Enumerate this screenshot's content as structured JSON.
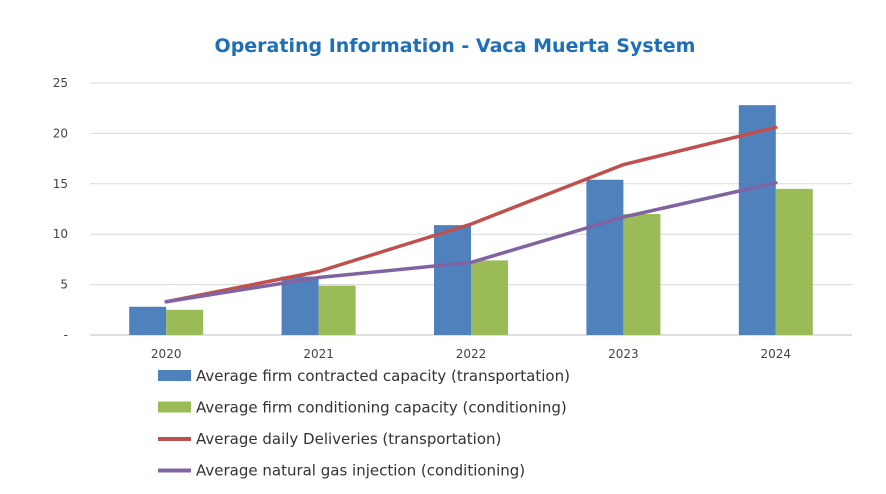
{
  "chart_data": {
    "type": "bar",
    "title": "Operating Information - Vaca Muerta System",
    "xlabel": "",
    "ylabel": "",
    "categories": [
      "2020",
      "2021",
      "2022",
      "2023",
      "2024"
    ],
    "ylim": [
      0,
      25
    ],
    "yticks": [
      0,
      5,
      10,
      15,
      20,
      25
    ],
    "ytick_labels": [
      "-",
      "5",
      "10",
      "15",
      "20",
      "25"
    ],
    "grid": true,
    "legend_position": "bottom",
    "series": [
      {
        "name": "Average firm contracted capacity (transportation)",
        "kind": "bar",
        "color": "#4F81BD",
        "values": [
          2.8,
          5.8,
          10.9,
          15.4,
          22.8
        ]
      },
      {
        "name": "Average firm conditioning capacity (conditioning)",
        "kind": "bar",
        "color": "#9BBB59",
        "values": [
          2.5,
          4.9,
          7.4,
          12.0,
          14.5
        ]
      },
      {
        "name": "Average daily Deliveries (transportation)",
        "kind": "line",
        "color": "#C0504D",
        "values": [
          3.3,
          6.3,
          11.0,
          16.9,
          20.6
        ]
      },
      {
        "name": "Average natural gas injection (conditioning)",
        "kind": "line",
        "color": "#8064A2",
        "values": [
          3.3,
          5.7,
          7.2,
          11.7,
          15.1
        ]
      }
    ]
  }
}
